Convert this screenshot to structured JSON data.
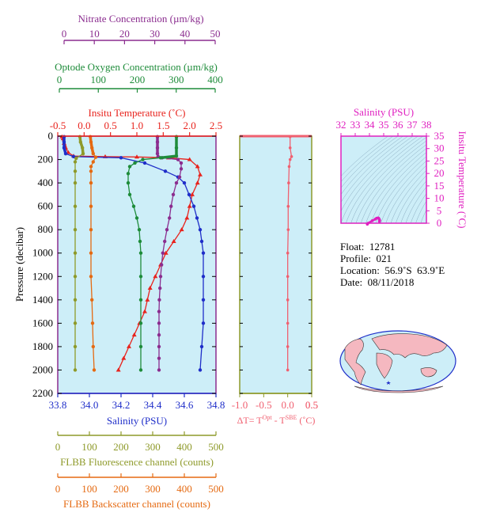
{
  "colors": {
    "nitrate": "#8B2D8F",
    "oxygen": "#1E8C3A",
    "temperature": "#E8231D",
    "salinity": "#1F2EC9",
    "fluorescence": "#8E9A2A",
    "backscatter": "#E56A12",
    "magenta": "#E020C0",
    "deltaT": "#F06070",
    "panelBg": "#CDEEF8"
  },
  "axes": {
    "nitrate": {
      "label": "Nitrate Concentration (µm/kg)",
      "ticks": [
        "0",
        "10",
        "20",
        "30",
        "40",
        "50"
      ]
    },
    "oxygen": {
      "label": "Optode Oxygen Concentration (µm/kg)",
      "ticks": [
        "0",
        "100",
        "200",
        "300",
        "400"
      ]
    },
    "temperature": {
      "label": "Insitu Temperature (˚C)",
      "ticks": [
        "-0.5",
        "0.0",
        "0.5",
        "1.0",
        "1.5",
        "2.0",
        "2.5"
      ]
    },
    "pressure": {
      "label": "Pressure (decibar)",
      "ticks": [
        "0",
        "200",
        "400",
        "600",
        "800",
        "1000",
        "1200",
        "1400",
        "1600",
        "1800",
        "2000",
        "2200"
      ]
    },
    "salinity": {
      "label": "Salinity (PSU)",
      "ticks": [
        "33.8",
        "34.0",
        "34.2",
        "34.4",
        "34.6",
        "34.8"
      ]
    },
    "fluorescence": {
      "label": "FLBB Fluorescence channel (counts)",
      "ticks": [
        "0",
        "100",
        "200",
        "300",
        "400",
        "500"
      ]
    },
    "backscatter": {
      "label": "FLBB Backscatter channel (counts)",
      "ticks": [
        "0",
        "100",
        "200",
        "300",
        "400",
        "500"
      ]
    },
    "deltaT": {
      "label_prefix": "ΔT= T",
      "sup1": "Opt",
      "label_mid": " - T",
      "sup2": "SBE",
      "label_suffix": " (˚C)",
      "ticks": [
        "-1.0",
        "-0.5",
        "0.0",
        "0.5"
      ]
    },
    "ts_salinity": {
      "label": "Salinity (PSU)",
      "ticks": [
        "32",
        "33",
        "34",
        "35",
        "36",
        "37",
        "38"
      ]
    },
    "ts_temperature": {
      "label": "Insitu Temperature (˚C)",
      "ticks": [
        "0",
        "5",
        "10",
        "15",
        "20",
        "25",
        "30",
        "35"
      ]
    }
  },
  "info": {
    "float_label": "Float:",
    "float_value": "12781",
    "profile_label": "Profile:",
    "profile_value": "021",
    "location_label": "Location:",
    "location_value": "56.9˚S  63.9˚E",
    "date_label": "Date:",
    "date_value": "08/11/2018"
  },
  "chart_data": [
    {
      "type": "line",
      "y_axis": "Pressure (decibar)",
      "ylim": [
        0,
        2200
      ],
      "y_inverted": true,
      "series": [
        {
          "name": "Insitu Temperature (˚C)",
          "xlim": [
            -0.5,
            2.5
          ],
          "points": [
            [
              -0.42,
              5
            ],
            [
              -0.4,
              20
            ],
            [
              -0.38,
              60
            ],
            [
              -0.35,
              100
            ],
            [
              -0.3,
              140
            ],
            [
              -0.2,
              170
            ],
            [
              0.4,
              175
            ],
            [
              1.0,
              178
            ],
            [
              1.6,
              185
            ],
            [
              2.0,
              200
            ],
            [
              2.15,
              260
            ],
            [
              2.2,
              330
            ],
            [
              2.15,
              400
            ],
            [
              2.05,
              500
            ],
            [
              2.0,
              600
            ],
            [
              1.95,
              700
            ],
            [
              1.85,
              800
            ],
            [
              1.7,
              900
            ],
            [
              1.55,
              1000
            ],
            [
              1.45,
              1100
            ],
            [
              1.35,
              1200
            ],
            [
              1.25,
              1300
            ],
            [
              1.2,
              1400
            ],
            [
              1.15,
              1500
            ],
            [
              1.05,
              1600
            ],
            [
              0.95,
              1700
            ],
            [
              0.85,
              1800
            ],
            [
              0.75,
              1900
            ],
            [
              0.65,
              2000
            ]
          ]
        },
        {
          "name": "Salinity (PSU)",
          "xlim": [
            33.8,
            34.8
          ],
          "points": [
            [
              33.84,
              5
            ],
            [
              33.84,
              50
            ],
            [
              33.84,
              100
            ],
            [
              33.85,
              150
            ],
            [
              33.9,
              175
            ],
            [
              34.2,
              185
            ],
            [
              34.35,
              230
            ],
            [
              34.48,
              300
            ],
            [
              34.56,
              350
            ],
            [
              34.6,
              400
            ],
            [
              34.63,
              500
            ],
            [
              34.66,
              600
            ],
            [
              34.68,
              700
            ],
            [
              34.7,
              800
            ],
            [
              34.71,
              900
            ],
            [
              34.72,
              1000
            ],
            [
              34.72,
              1200
            ],
            [
              34.72,
              1400
            ],
            [
              34.72,
              1600
            ],
            [
              34.71,
              1800
            ],
            [
              34.7,
              2000
            ]
          ]
        },
        {
          "name": "Nitrate Concentration (µm/kg)",
          "xlim": [
            0,
            50
          ],
          "points": [
            [
              31.5,
              5
            ],
            [
              31.5,
              50
            ],
            [
              31.5,
              100
            ],
            [
              31.5,
              150
            ],
            [
              31.7,
              175
            ],
            [
              33,
              185
            ],
            [
              38,
              200
            ],
            [
              39,
              230
            ],
            [
              39,
              280
            ],
            [
              38.5,
              350
            ],
            [
              37.5,
              400
            ],
            [
              36.5,
              500
            ],
            [
              35.8,
              600
            ],
            [
              35.3,
              700
            ],
            [
              34.5,
              800
            ],
            [
              33.8,
              900
            ],
            [
              33.2,
              1000
            ],
            [
              32.8,
              1100
            ],
            [
              32.5,
              1200
            ],
            [
              32.3,
              1300
            ],
            [
              32.1,
              1400
            ],
            [
              32,
              1500
            ],
            [
              32,
              1600
            ],
            [
              32,
              1700
            ],
            [
              32,
              1800
            ],
            [
              32,
              1900
            ],
            [
              32,
              2000
            ]
          ]
        },
        {
          "name": "Optode Oxygen Concentration (µm/kg)",
          "xlim": [
            0,
            400
          ],
          "points": [
            [
              300,
              5
            ],
            [
              300,
              100
            ],
            [
              300,
              170
            ],
            [
              260,
              185
            ],
            [
              215,
              200
            ],
            [
              195,
              230
            ],
            [
              182,
              260
            ],
            [
              178,
              320
            ],
            [
              178,
              400
            ],
            [
              182,
              500
            ],
            [
              192,
              600
            ],
            [
              200,
              700
            ],
            [
              206,
              800
            ],
            [
              208,
              900
            ],
            [
              210,
              1000
            ],
            [
              210,
              1200
            ],
            [
              210,
              1400
            ],
            [
              210,
              1600
            ],
            [
              210,
              1800
            ],
            [
              210,
              2000
            ]
          ]
        },
        {
          "name": "FLBB Fluorescence channel (counts)",
          "xlim": [
            0,
            500
          ],
          "points": [
            [
              70,
              5
            ],
            [
              72,
              50
            ],
            [
              78,
              100
            ],
            [
              80,
              150
            ],
            [
              58,
              190
            ],
            [
              55,
              220
            ],
            [
              55,
              300
            ],
            [
              55,
              400
            ],
            [
              55,
              600
            ],
            [
              55,
              800
            ],
            [
              55,
              1000
            ],
            [
              55,
              1200
            ],
            [
              55,
              1400
            ],
            [
              55,
              1600
            ],
            [
              55,
              1800
            ],
            [
              55,
              2000
            ]
          ]
        },
        {
          "name": "FLBB Backscatter channel (counts)",
          "xlim": [
            0,
            500
          ],
          "points": [
            [
              103,
              5
            ],
            [
              105,
              50
            ],
            [
              108,
              100
            ],
            [
              112,
              150
            ],
            [
              120,
              180
            ],
            [
              112,
              220
            ],
            [
              105,
              260
            ],
            [
              105,
              300
            ],
            [
              105,
              400
            ],
            [
              105,
              600
            ],
            [
              105,
              800
            ],
            [
              105,
              1000
            ],
            [
              105,
              1200
            ],
            [
              108,
              1400
            ],
            [
              110,
              1600
            ],
            [
              112,
              1800
            ],
            [
              115,
              2000
            ]
          ]
        }
      ]
    },
    {
      "type": "line",
      "xlabel": "ΔT= TOpt - TSBE (˚C)",
      "xlim": [
        -1.0,
        0.5
      ],
      "ylim": [
        0,
        2200
      ],
      "y_inverted": true,
      "series": [
        {
          "name": "ΔT",
          "points": [
            [
              0.05,
              5
            ],
            [
              0.05,
              100
            ],
            [
              0.08,
              175
            ],
            [
              0.05,
              200
            ],
            [
              0.03,
              260
            ],
            [
              0.02,
              400
            ],
            [
              0.01,
              600
            ],
            [
              0.01,
              800
            ],
            [
              0.0,
              1000
            ],
            [
              0.0,
              1200
            ],
            [
              0.0,
              1400
            ],
            [
              0.0,
              1600
            ],
            [
              0.0,
              1800
            ],
            [
              0.0,
              2000
            ]
          ]
        }
      ]
    },
    {
      "type": "scatter",
      "xlabel": "Salinity (PSU)",
      "ylabel": "Insitu Temperature (˚C)",
      "xlim": [
        32,
        38
      ],
      "ylim": [
        0,
        35
      ],
      "series": [
        {
          "name": "T-S",
          "points": [
            [
              33.85,
              -0.4
            ],
            [
              33.9,
              0.0
            ],
            [
              34.2,
              1.0
            ],
            [
              34.4,
              1.6
            ],
            [
              34.5,
              2.0
            ],
            [
              34.6,
              2.15
            ],
            [
              34.65,
              2.0
            ],
            [
              34.7,
              1.5
            ],
            [
              34.72,
              1.0
            ],
            [
              34.7,
              0.7
            ]
          ]
        }
      ]
    }
  ]
}
